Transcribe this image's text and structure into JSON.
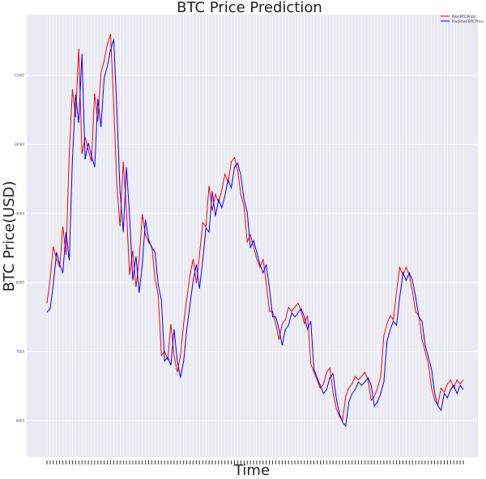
{
  "chart_data": {
    "type": "line",
    "title": "BTC Price Prediction",
    "xlabel": "Time",
    "ylabel": "BTC Price(USD)",
    "ylim": [
      5470,
      11880
    ],
    "yticks": [
      6000,
      7000,
      8000,
      9000,
      10000,
      11000
    ],
    "grid": true,
    "legend_position": "top-right",
    "series": [
      {
        "name": "Real BTC Price",
        "color": "#ff0000",
        "values": [
          7700,
          8050,
          8520,
          8340,
          8220,
          8810,
          8400,
          9860,
          10800,
          10390,
          11390,
          9860,
          10100,
          9920,
          9750,
          10740,
          10330,
          11040,
          11210,
          11450,
          11600,
          10570,
          9400,
          8810,
          9750,
          9040,
          8110,
          8460,
          7930,
          8340,
          8990,
          8690,
          8580,
          8520,
          8050,
          7820,
          6940,
          7000,
          6880,
          7400,
          6940,
          6700,
          6940,
          7400,
          7760,
          8110,
          8340,
          7990,
          8400,
          8870,
          8810,
          9400,
          9040,
          9280,
          9160,
          9340,
          9570,
          9450,
          9750,
          9810,
          9630,
          9280,
          9100,
          8580,
          8690,
          8520,
          8340,
          8220,
          8340,
          7990,
          7580,
          7580,
          7400,
          7170,
          7400,
          7460,
          7640,
          7580,
          7640,
          7700,
          7580,
          7400,
          7520,
          6820,
          6700,
          6590,
          6470,
          6530,
          6700,
          6760,
          6410,
          6180,
          6060,
          6000,
          6350,
          6470,
          6530,
          6640,
          6590,
          6640,
          6700,
          6590,
          6290,
          6350,
          6470,
          6640,
          7230,
          7400,
          7520,
          7460,
          7870,
          8220,
          8110,
          8220,
          8110,
          7870,
          7580,
          7520,
          7170,
          7000,
          6820,
          6470,
          6290,
          6230,
          6470,
          6410,
          6530,
          6590,
          6470,
          6590,
          6530,
          6590
        ]
      },
      {
        "name": "Predicted BTC Price",
        "color": "#0000ff",
        "values": [
          7570,
          7620,
          7970,
          8440,
          8260,
          8140,
          8730,
          8320,
          9780,
          10720,
          10310,
          11310,
          9780,
          10020,
          9840,
          9670,
          10660,
          10250,
          10960,
          11130,
          11370,
          11520,
          10490,
          9320,
          8730,
          9670,
          8960,
          8030,
          8380,
          7850,
          8260,
          8910,
          8610,
          8500,
          8440,
          7970,
          7740,
          6860,
          6920,
          6800,
          7320,
          6860,
          6620,
          6860,
          7320,
          7680,
          8030,
          8260,
          7910,
          8320,
          8790,
          8730,
          9320,
          8960,
          9200,
          9080,
          9260,
          9490,
          9370,
          9670,
          9730,
          9550,
          9200,
          9020,
          8500,
          8610,
          8440,
          8260,
          8140,
          8260,
          7910,
          7500,
          7500,
          7320,
          7090,
          7320,
          7380,
          7560,
          7500,
          7560,
          7620,
          7500,
          7320,
          7440,
          6740,
          6620,
          6510,
          6390,
          6450,
          6620,
          6680,
          6330,
          6100,
          5980,
          5920,
          6270,
          6390,
          6450,
          6560,
          6510,
          6560,
          6620,
          6510,
          6210,
          6270,
          6390,
          6560,
          7150,
          7320,
          7440,
          7380,
          7790,
          8140,
          8030,
          8140,
          8030,
          7790,
          7500,
          7440,
          7090,
          6920,
          6740,
          6390,
          6210,
          6150,
          6390,
          6330,
          6450,
          6510,
          6390,
          6510,
          6450
        ]
      }
    ]
  }
}
